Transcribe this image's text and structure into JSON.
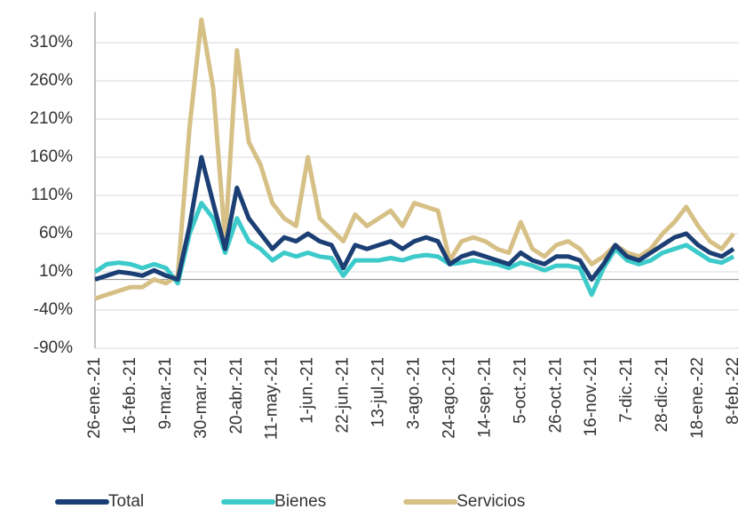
{
  "chart_data": {
    "type": "line",
    "categories": [
      "26-ene.-21",
      null,
      null,
      "16-feb.-21",
      null,
      null,
      "9-mar.-21",
      null,
      null,
      "30-mar.-21",
      null,
      null,
      "20-abr.-21",
      null,
      null,
      "11-may.-21",
      null,
      null,
      "1-jun.-21",
      null,
      null,
      "22-jun.-21",
      null,
      null,
      "13-jul.-21",
      null,
      null,
      "3-ago.-21",
      null,
      null,
      "24-ago.-21",
      null,
      null,
      "14-sep.-21",
      null,
      null,
      "5-oct.-21",
      null,
      null,
      "26-oct.-21",
      null,
      null,
      "16-nov.-21",
      null,
      null,
      "7-dic.-21",
      null,
      null,
      "28-dic.-21",
      null,
      null,
      "18-ene.-22",
      null,
      null,
      "8-feb.-22"
    ],
    "series": [
      {
        "name": "Total",
        "color": "#1b3f74",
        "values": [
          0,
          5,
          10,
          8,
          5,
          12,
          5,
          0,
          70,
          160,
          100,
          40,
          120,
          80,
          60,
          40,
          55,
          50,
          60,
          50,
          45,
          15,
          45,
          40,
          45,
          50,
          40,
          50,
          55,
          50,
          20,
          30,
          35,
          30,
          25,
          20,
          35,
          25,
          20,
          30,
          30,
          25,
          0,
          20,
          45,
          30,
          25,
          35,
          45,
          55,
          60,
          45,
          35,
          30,
          40
        ]
      },
      {
        "name": "Bienes",
        "color": "#3ccaca",
        "values": [
          10,
          20,
          22,
          20,
          15,
          20,
          15,
          -5,
          60,
          100,
          80,
          35,
          80,
          50,
          40,
          25,
          35,
          30,
          35,
          30,
          28,
          5,
          25,
          25,
          25,
          28,
          25,
          30,
          32,
          30,
          20,
          22,
          25,
          22,
          20,
          15,
          22,
          18,
          12,
          18,
          18,
          15,
          -20,
          15,
          40,
          25,
          20,
          25,
          35,
          40,
          45,
          35,
          25,
          22,
          30
        ]
      },
      {
        "name": "Servicios",
        "color": "#d6c086",
        "values": [
          -25,
          -20,
          -15,
          -10,
          -10,
          0,
          -5,
          5,
          200,
          340,
          250,
          50,
          300,
          180,
          150,
          100,
          80,
          70,
          160,
          80,
          65,
          50,
          85,
          70,
          80,
          90,
          70,
          100,
          95,
          90,
          25,
          50,
          55,
          50,
          40,
          35,
          75,
          40,
          30,
          45,
          50,
          40,
          20,
          30,
          45,
          35,
          30,
          40,
          60,
          75,
          95,
          70,
          50,
          40,
          60
        ]
      }
    ],
    "ylim": [
      -90,
      350
    ],
    "yticks": [
      {
        "value": -90,
        "label": "-90%"
      },
      {
        "value": -40,
        "label": "-40%"
      },
      {
        "value": 10,
        "label": "10%"
      },
      {
        "value": 60,
        "label": "60%"
      },
      {
        "value": 110,
        "label": "110%"
      },
      {
        "value": 160,
        "label": "160%"
      },
      {
        "value": 210,
        "label": "210%"
      },
      {
        "value": 260,
        "label": "260%"
      },
      {
        "value": 310,
        "label": "310%"
      }
    ],
    "grid": true
  }
}
